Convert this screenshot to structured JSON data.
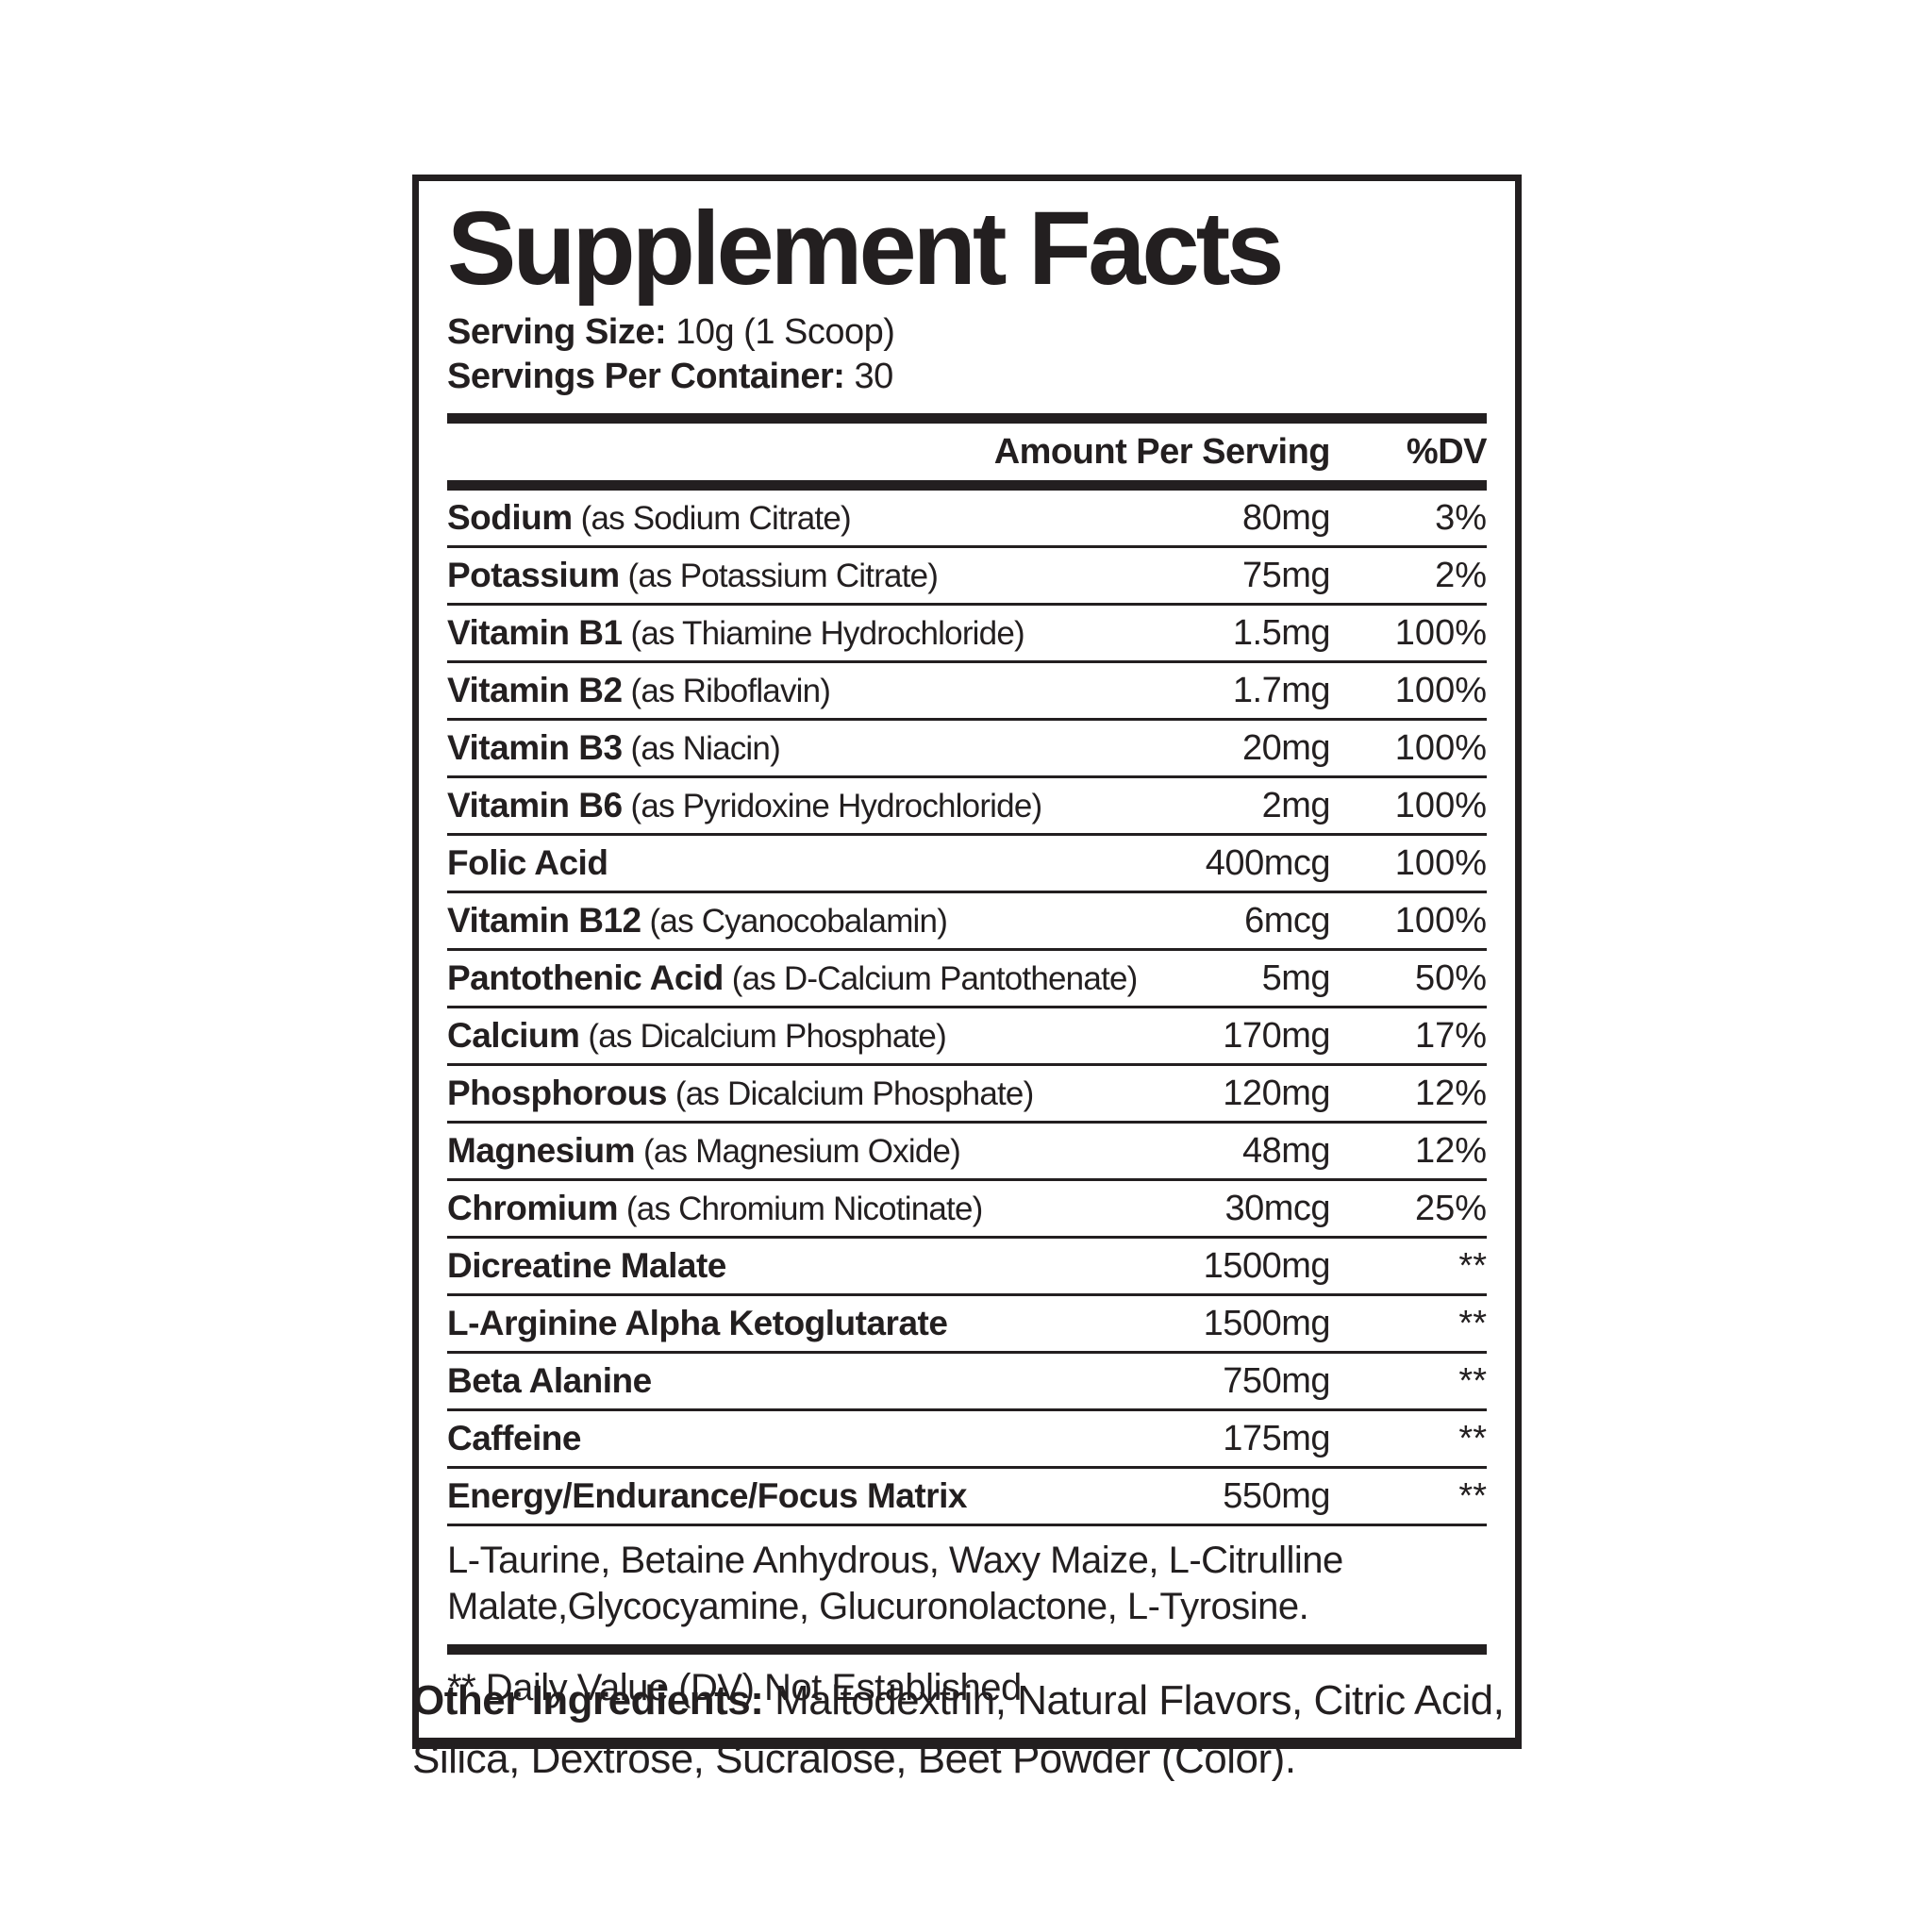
{
  "colors": {
    "ink": "#231f20",
    "background": "#ffffff"
  },
  "panel": {
    "title": "Supplement Facts",
    "serving_size_label": "Serving Size:",
    "serving_size_value": "10g (1 Scoop)",
    "servings_per_container_label": "Servings Per Container:",
    "servings_per_container_value": "30"
  },
  "table": {
    "header": {
      "amount": "Amount Per Serving",
      "dv": "%DV"
    },
    "rows": [
      {
        "name": "Sodium",
        "detail": "(as Sodium Citrate)",
        "amount": "80mg",
        "dv": "3%"
      },
      {
        "name": "Potassium",
        "detail": "(as Potassium Citrate)",
        "amount": "75mg",
        "dv": "2%"
      },
      {
        "name": "Vitamin B1",
        "detail": "(as Thiamine Hydrochloride)",
        "amount": "1.5mg",
        "dv": "100%"
      },
      {
        "name": "Vitamin B2",
        "detail": "(as Riboflavin)",
        "amount": "1.7mg",
        "dv": "100%"
      },
      {
        "name": "Vitamin B3",
        "detail": "(as Niacin)",
        "amount": "20mg",
        "dv": "100%"
      },
      {
        "name": "Vitamin B6",
        "detail": "(as Pyridoxine Hydrochloride)",
        "amount": "2mg",
        "dv": "100%"
      },
      {
        "name": "Folic Acid",
        "detail": "",
        "amount": "400mcg",
        "dv": "100%"
      },
      {
        "name": "Vitamin B12",
        "detail": "(as Cyanocobalamin)",
        "amount": "6mcg",
        "dv": "100%"
      },
      {
        "name": "Pantothenic Acid",
        "detail": "(as D-Calcium Pantothenate)",
        "amount": "5mg",
        "dv": "50%"
      },
      {
        "name": "Calcium",
        "detail": "(as Dicalcium Phosphate)",
        "amount": "170mg",
        "dv": "17%"
      },
      {
        "name": "Phosphorous",
        "detail": "(as Dicalcium Phosphate)",
        "amount": "120mg",
        "dv": "12%"
      },
      {
        "name": "Magnesium",
        "detail": "(as Magnesium Oxide)",
        "amount": "48mg",
        "dv": "12%"
      },
      {
        "name": "Chromium",
        "detail": "(as Chromium Nicotinate)",
        "amount": "30mcg",
        "dv": "25%"
      },
      {
        "name": "Dicreatine Malate",
        "detail": "",
        "amount": "1500mg",
        "dv": "**"
      },
      {
        "name": "L-Arginine Alpha Ketoglutarate",
        "detail": "",
        "amount": "1500mg",
        "dv": "**"
      },
      {
        "name": "Beta Alanine",
        "detail": "",
        "amount": "750mg",
        "dv": "**"
      },
      {
        "name": "Caffeine",
        "detail": "",
        "amount": "175mg",
        "dv": "**"
      },
      {
        "name": "Energy/Endurance/Focus Matrix",
        "detail": "",
        "amount": "550mg",
        "dv": "**"
      }
    ],
    "blend_note": "L-Taurine, Betaine Anhydrous, Waxy Maize,  L-Citrulline Malate,Glycocyamine, Glucuronolactone, L-Tyrosine.",
    "footnote": "** Daily Value (DV) Not Established"
  },
  "other_ingredients": {
    "label": "Other Ingredients:",
    "value": "Maltodextrin, Natural Flavors, Citric Acid, Silica, Dextrose, Sucralose, Beet Powder (Color)."
  }
}
